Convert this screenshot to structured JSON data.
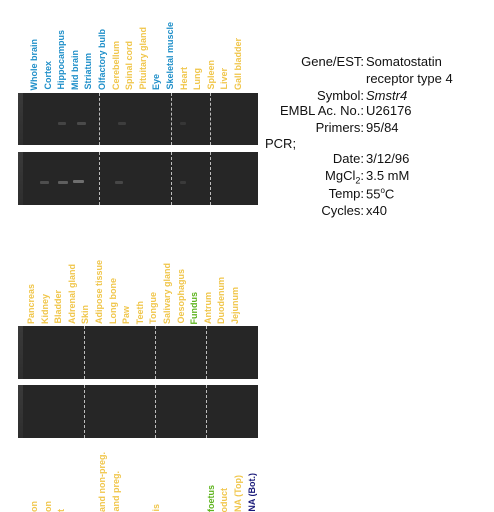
{
  "colors": {
    "blue": "#1f8fc9",
    "yellow": "#f0c64b",
    "green": "#5fb41f",
    "navy": "#1a1a7a",
    "gel": "#262626"
  },
  "top_lanes": [
    {
      "label": "Whole brain",
      "color": "blue"
    },
    {
      "label": "Cortex",
      "color": "blue"
    },
    {
      "label": "Hippocampus",
      "color": "blue"
    },
    {
      "label": "Mid brain",
      "color": "blue"
    },
    {
      "label": "Striatum",
      "color": "blue"
    },
    {
      "label": "Olfactory bulb",
      "color": "blue"
    },
    {
      "label": "Cerebellum",
      "color": "yellow"
    },
    {
      "label": "Spinal cord",
      "color": "yellow"
    },
    {
      "label": "Pituitary gland",
      "color": "yellow"
    },
    {
      "label": "Eye",
      "color": "blue"
    },
    {
      "label": "Skeletal muscle",
      "color": "blue"
    },
    {
      "label": "Heart",
      "color": "yellow"
    },
    {
      "label": "Lung",
      "color": "yellow"
    },
    {
      "label": "Spleen",
      "color": "yellow"
    },
    {
      "label": "Liver",
      "color": "yellow"
    },
    {
      "label": "Gall bladder",
      "color": "yellow"
    }
  ],
  "mid_lanes": [
    {
      "label": "Pancreas",
      "color": "yellow"
    },
    {
      "label": "Kidney",
      "color": "yellow"
    },
    {
      "label": "Bladder",
      "color": "yellow"
    },
    {
      "label": "Adrenal gland",
      "color": "yellow"
    },
    {
      "label": "Skin",
      "color": "yellow"
    },
    {
      "label": "Adipose tissue",
      "color": "yellow"
    },
    {
      "label": "Long bone",
      "color": "yellow"
    },
    {
      "label": "Paw",
      "color": "yellow"
    },
    {
      "label": "Teeth",
      "color": "yellow"
    },
    {
      "label": "Tongue",
      "color": "yellow"
    },
    {
      "label": "Salivary gland",
      "color": "yellow"
    },
    {
      "label": "Oesophagus",
      "color": "yellow"
    },
    {
      "label": "Fundus",
      "color": "green"
    },
    {
      "label": "Antrum",
      "color": "yellow"
    },
    {
      "label": "Duodenum",
      "color": "yellow"
    },
    {
      "label": "Jejunum",
      "color": "yellow"
    }
  ],
  "bottom_fragments": [
    {
      "label": "on",
      "color": "yellow"
    },
    {
      "label": "on",
      "color": "yellow"
    },
    {
      "label": "t",
      "color": "yellow"
    },
    {
      "label": "",
      "color": "yellow"
    },
    {
      "label": "",
      "color": "yellow"
    },
    {
      "label": "and non-preg.",
      "color": "yellow"
    },
    {
      "label": "and preg.",
      "color": "yellow"
    },
    {
      "label": "",
      "color": "yellow"
    },
    {
      "label": "",
      "color": "yellow"
    },
    {
      "label": "is",
      "color": "yellow"
    },
    {
      "label": "",
      "color": "yellow"
    },
    {
      "label": "",
      "color": "yellow"
    },
    {
      "label": "",
      "color": "yellow"
    },
    {
      "label": "foetus",
      "color": "green"
    },
    {
      "label": "oduct",
      "color": "yellow"
    },
    {
      "label": "NA (Top)",
      "color": "yellow"
    },
    {
      "label": "NA (Bot.)",
      "color": "navy"
    }
  ],
  "info": {
    "gene_key": "Gene/EST:",
    "gene_val_1": "Somatostatin",
    "gene_val_2": "receptor type 4",
    "symbol_key": "Symbol:",
    "symbol_val": "Smstr4",
    "embl_key": "EMBL Ac. No.:",
    "embl_val": "U26176",
    "primers_key": "Primers:",
    "primers_val": "95/84",
    "pcr_label": "PCR;",
    "date_key": "Date:",
    "date_val": "3/12/96",
    "mgcl_key_pre": "MgCl",
    "mgcl_key_sub": "2",
    "mgcl_key_post": ":",
    "mgcl_val": "3.5 mM",
    "temp_key": "Temp:",
    "temp_val_num": "55",
    "temp_val_sup": "o",
    "temp_val_unit": "C",
    "cycles_key": "Cycles:",
    "cycles_val": "x40"
  }
}
